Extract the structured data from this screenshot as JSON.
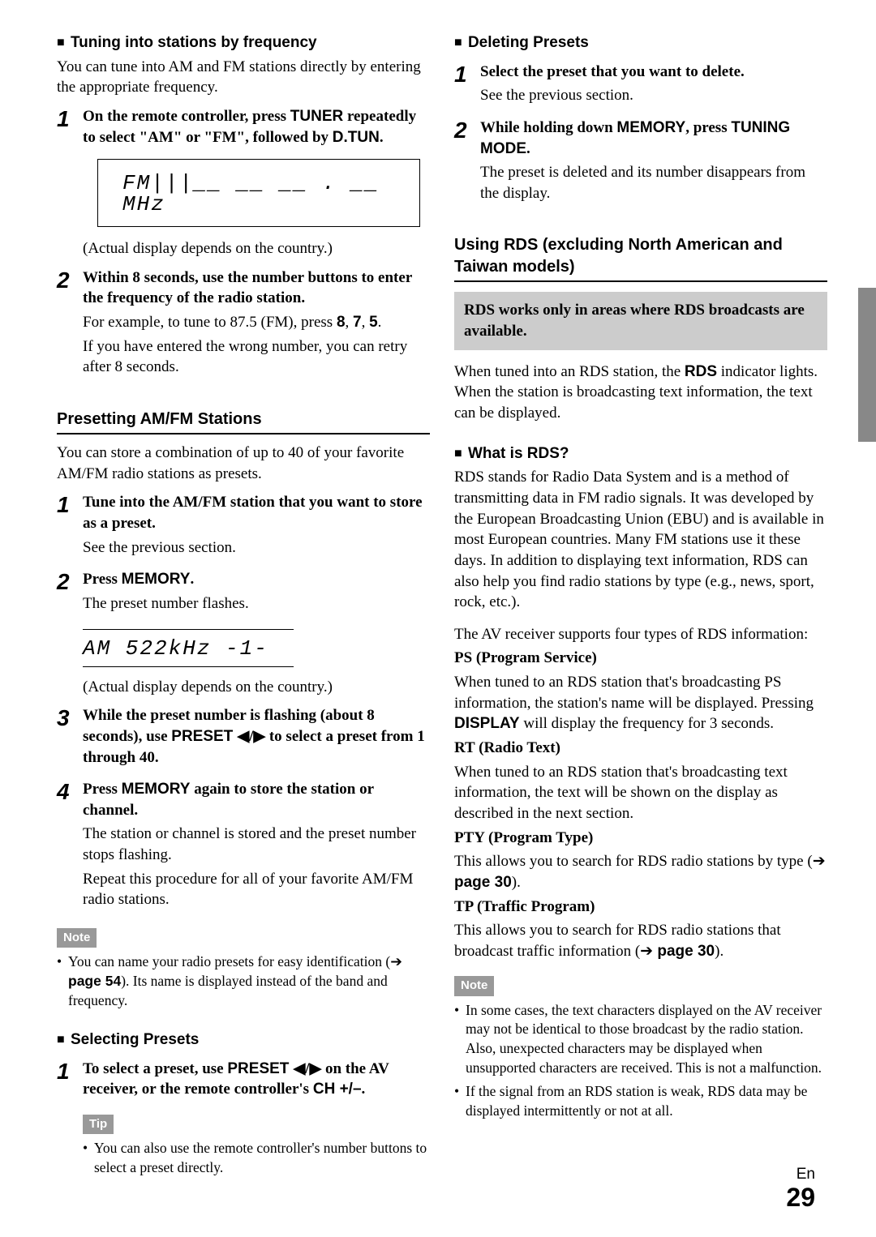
{
  "left": {
    "h1": "Tuning into stations by frequency",
    "p1": "You can tune into AM and FM stations directly by entering the appropriate frequency.",
    "s1a": "On the remote controller, press ",
    "s1b": "TUNER",
    "s1c": " repeatedly to select \"AM\" or \"FM\", followed by ",
    "s1d": "D.TUN",
    "s1e": ".",
    "lcd1": "FM|||__ __ __ . __   MHz",
    "actual": "(Actual display depends on the country.)",
    "s2a": "Within 8 seconds, use the number buttons to enter the frequency of the radio station.",
    "s2b": "For example, to tune to 87.5 (FM), press ",
    "s2c": "8",
    "s2d": ", ",
    "s2e": "7",
    "s2f": ", ",
    "s2g": "5",
    "s2h": ".",
    "s2i": "If you have entered the wrong number, you can retry after 8 seconds.",
    "sec2": "Presetting AM/FM Stations",
    "p2": "You can store a combination of up to 40 of your favorite AM/FM radio stations as presets.",
    "ps1a": "Tune into the AM/FM station that you want to store as a preset.",
    "ps1b": "See the previous section.",
    "ps2a": "Press ",
    "ps2b": "MEMORY",
    "ps2c": ".",
    "ps2d": "The preset number flashes.",
    "lcd2": "AM   522kHz -1-",
    "ps3a": "While the preset number is flashing (about 8 seconds), use ",
    "ps3b": "PRESET ",
    "ps3c": "◀/▶",
    "ps3d": " to select a preset from 1 through 40.",
    "ps4a": "Press ",
    "ps4b": "MEMORY",
    "ps4c": " again to store the station or channel.",
    "ps4d": "The station or channel is stored and the preset number stops flashing.",
    "ps4e": "Repeat this procedure for all of your favorite AM/FM radio stations.",
    "note": "Note",
    "noteItem1a": "You can name your radio presets for easy identification (",
    "noteItem1b": "page 54",
    "noteItem1c": "). Its name is displayed instead of the band and frequency.",
    "h2": "Selecting Presets",
    "sp1a": "To select a preset, use ",
    "sp1b": "PRESET ",
    "sp1c": "◀/▶",
    "sp1d": " on the AV receiver, or the remote controller's ",
    "sp1e": "CH +/–",
    "sp1f": ".",
    "tip": "Tip",
    "tipItem": "You can also use the remote controller's number buttons to select a preset directly."
  },
  "right": {
    "h1": "Deleting Presets",
    "d1a": "Select the preset that you want to delete.",
    "d1b": "See the previous section.",
    "d2a": "While holding down ",
    "d2b": "MEMORY",
    "d2c": ", press ",
    "d2d": "TUNING MODE",
    "d2e": ".",
    "d2f": "The preset is deleted and its number disappears from the display.",
    "sec": "Using RDS (excluding North American and Taiwan models)",
    "box": "RDS works only in areas where RDS broadcasts are available.",
    "p1a": "When tuned into an RDS station, the ",
    "p1b": "RDS",
    "p1c": " indicator lights. When the station is broadcasting text information, the text can be displayed.",
    "h2": "What is RDS?",
    "p2": "RDS stands for Radio Data System and is a method of transmitting data in FM radio signals. It was developed by the European Broadcasting Union (EBU) and is available in most European countries. Many FM stations use it these days. In addition to displaying text information, RDS can also help you find radio stations by type (e.g., news, sport, rock, etc.).",
    "p3": "The AV receiver supports four types of RDS information:",
    "ps_t": "PS (Program Service)",
    "ps_b1": "When tuned to an RDS station that's broadcasting PS information, the station's name will be displayed. Pressing ",
    "ps_b2": "DISPLAY",
    "ps_b3": " will display the frequency for 3 seconds.",
    "rt_t": "RT (Radio Text)",
    "rt_b": "When tuned to an RDS station that's broadcasting text information, the text will be shown on the display as described in the next section.",
    "pty_t": "PTY (Program Type)",
    "pty_b1": "This allows you to search for RDS radio stations by type (",
    "pty_b2": "page 30",
    "pty_b3": ").",
    "tp_t": "TP (Traffic Program)",
    "tp_b1": "This allows you to search for RDS radio stations that broadcast traffic information (",
    "tp_b2": "page 30",
    "tp_b3": ").",
    "note": "Note",
    "n1": "In some cases, the text characters displayed on the AV receiver may not be identical to those broadcast by the radio station. Also, unexpected characters may be displayed when unsupported characters are received. This is not a malfunction.",
    "n2": "If the signal from an RDS station is weak, RDS data may be displayed intermittently or not at all."
  },
  "page": {
    "lang": "En",
    "num": "29"
  }
}
